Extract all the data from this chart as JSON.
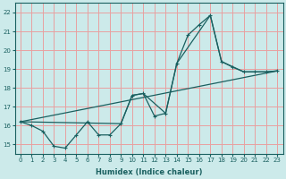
{
  "xlabel": "Humidex (Indice chaleur)",
  "bg_color": "#cceaea",
  "grid_color": "#e8a0a0",
  "line_color": "#1a6060",
  "xlim": [
    -0.5,
    23.5
  ],
  "ylim": [
    14.5,
    22.5
  ],
  "xticks": [
    0,
    1,
    2,
    3,
    4,
    5,
    6,
    7,
    8,
    9,
    10,
    11,
    12,
    13,
    14,
    15,
    16,
    17,
    18,
    19,
    20,
    21,
    22,
    23
  ],
  "yticks": [
    15,
    16,
    17,
    18,
    19,
    20,
    21,
    22
  ],
  "line1_x": [
    0,
    1,
    2,
    3,
    4,
    5,
    6,
    7,
    8,
    9,
    10,
    11,
    12,
    13,
    14,
    15,
    16,
    17,
    18,
    19,
    20,
    21,
    22,
    23
  ],
  "line1_y": [
    16.2,
    16.0,
    15.7,
    14.9,
    14.8,
    15.5,
    16.2,
    15.5,
    15.5,
    16.1,
    17.6,
    17.7,
    16.5,
    16.65,
    19.3,
    20.8,
    21.35,
    21.85,
    19.4,
    19.1,
    18.85,
    18.85,
    18.85,
    18.9
  ],
  "line2_x": [
    0,
    9,
    10,
    11,
    13,
    14,
    17,
    18,
    20,
    21,
    22,
    23
  ],
  "line2_y": [
    16.2,
    16.1,
    17.6,
    17.7,
    16.65,
    19.3,
    21.85,
    19.4,
    18.85,
    18.85,
    18.85,
    18.9
  ],
  "line3_x": [
    0,
    23
  ],
  "line3_y": [
    16.2,
    18.9
  ]
}
